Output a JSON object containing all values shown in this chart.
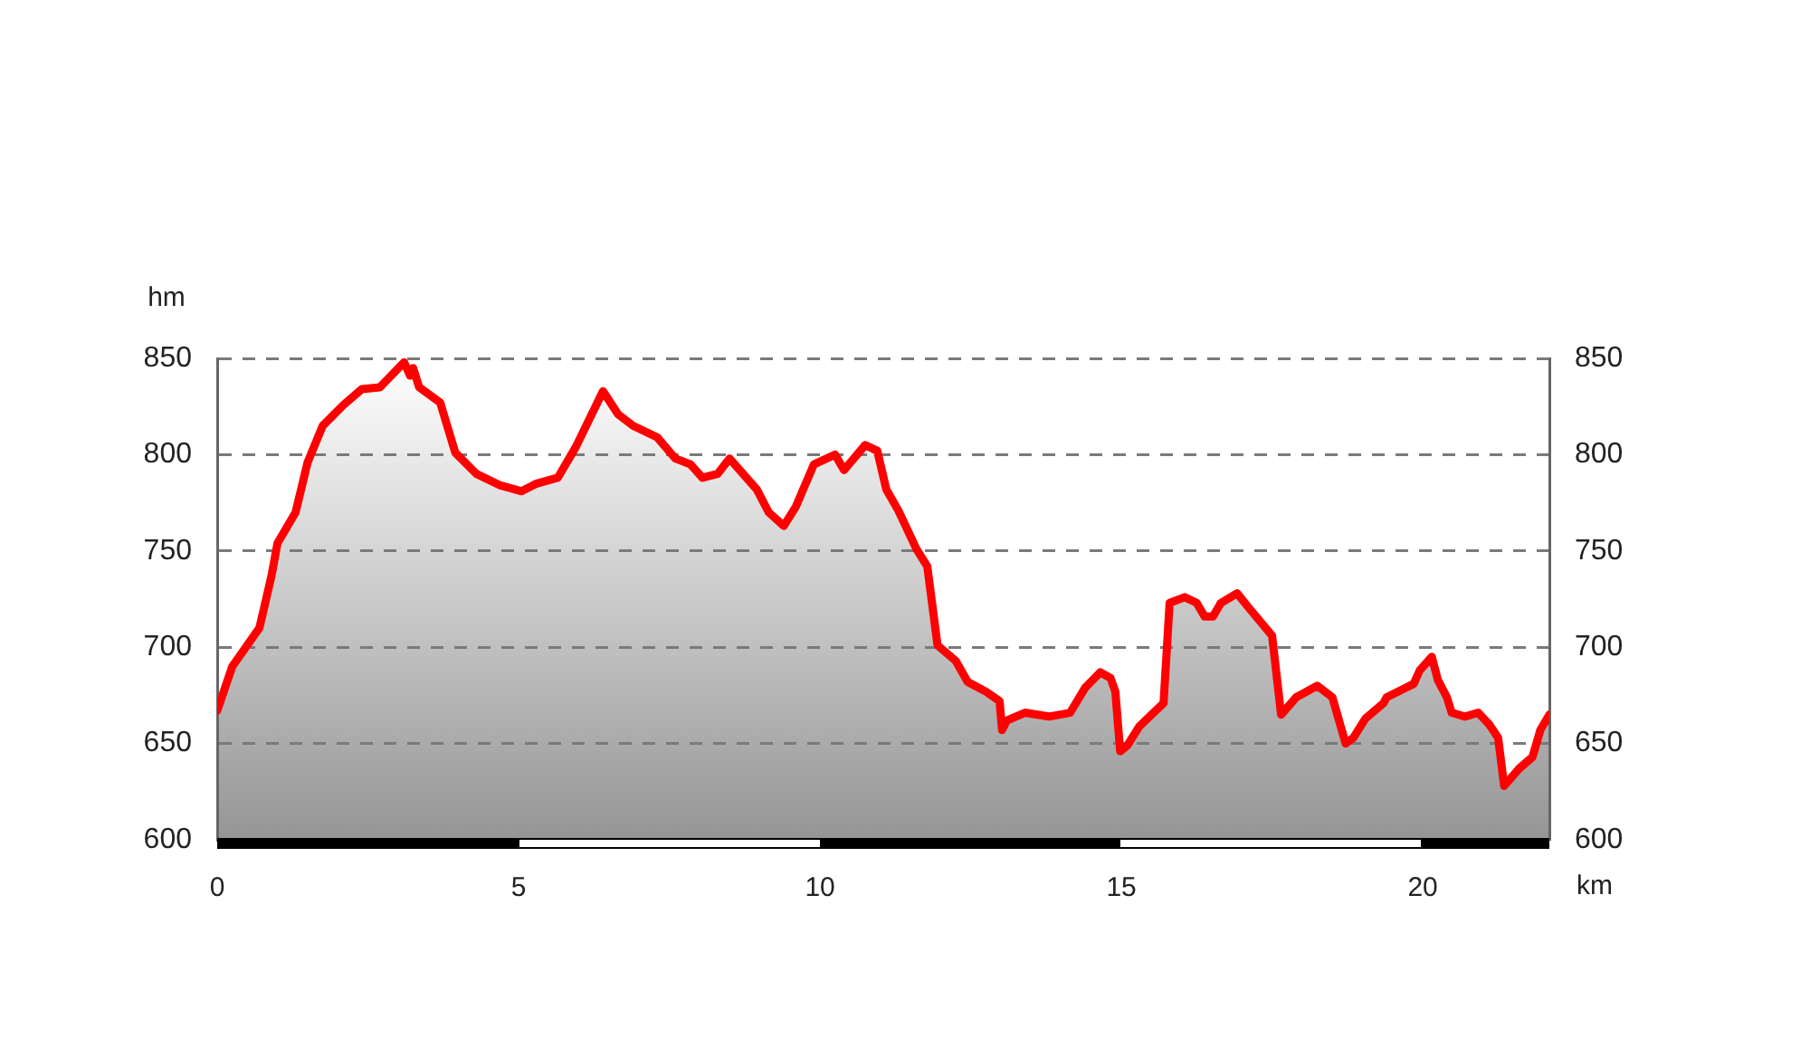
{
  "chart_data": {
    "type": "area",
    "xlabel": "km",
    "ylabel": "hm",
    "x": [
      0,
      0.25,
      0.7,
      0.9,
      1.0,
      1.3,
      1.5,
      1.75,
      2.1,
      2.4,
      2.7,
      3.1,
      3.2,
      3.25,
      3.35,
      3.7,
      3.95,
      4.3,
      4.7,
      5.05,
      5.3,
      5.65,
      5.95,
      6.4,
      6.65,
      6.9,
      7.3,
      7.6,
      7.85,
      8.05,
      8.3,
      8.5,
      8.95,
      9.15,
      9.4,
      9.6,
      9.9,
      10.25,
      10.4,
      10.75,
      10.95,
      11.1,
      11.3,
      11.6,
      11.78,
      11.95,
      12.25,
      12.45,
      12.75,
      12.98,
      13.02,
      13.1,
      13.4,
      13.8,
      14.15,
      14.4,
      14.65,
      14.82,
      14.9,
      14.98,
      15.1,
      15.3,
      15.7,
      15.8,
      16.05,
      16.25,
      16.38,
      16.52,
      16.65,
      16.92,
      17.1,
      17.5,
      17.65,
      17.9,
      18.25,
      18.5,
      18.72,
      18.85,
      19.05,
      19.35,
      19.4,
      19.85,
      19.95,
      20.15,
      20.25,
      20.4,
      20.48,
      20.7,
      20.92,
      21.1,
      21.25,
      21.35,
      21.6,
      21.82,
      21.95,
      22.1
    ],
    "values": [
      667,
      690,
      710,
      737,
      754,
      770,
      796,
      815,
      826,
      834,
      835,
      848,
      841,
      845,
      835,
      827,
      801,
      790,
      784,
      781,
      785,
      788,
      804,
      833,
      821,
      815,
      809,
      798,
      795,
      788,
      790,
      798,
      782,
      770,
      763,
      773,
      795,
      800,
      792,
      805,
      802,
      782,
      771,
      751,
      742,
      701,
      693,
      682,
      677,
      672,
      657,
      662,
      666,
      664,
      666,
      679,
      687,
      684,
      677,
      646,
      649,
      659,
      671,
      723,
      726,
      723,
      716,
      716,
      723,
      728,
      721,
      706,
      665,
      674,
      680,
      674,
      650,
      653,
      663,
      671,
      674,
      681,
      688,
      695,
      683,
      674,
      666,
      664,
      666,
      660,
      653,
      628,
      637,
      643,
      657,
      665
    ],
    "color": "#ff0000",
    "xlim": [
      0,
      22.1
    ],
    "xticks": [
      0,
      5,
      10,
      15,
      20
    ],
    "ylim": [
      600,
      850
    ],
    "yticks": [
      600,
      650,
      700,
      750,
      800,
      850
    ],
    "y2lim": [
      600,
      850
    ],
    "y2ticks": [
      600,
      650,
      700,
      750,
      800,
      850
    ],
    "grid": "y",
    "legend": false,
    "marker": "none",
    "line_style": "solid"
  }
}
